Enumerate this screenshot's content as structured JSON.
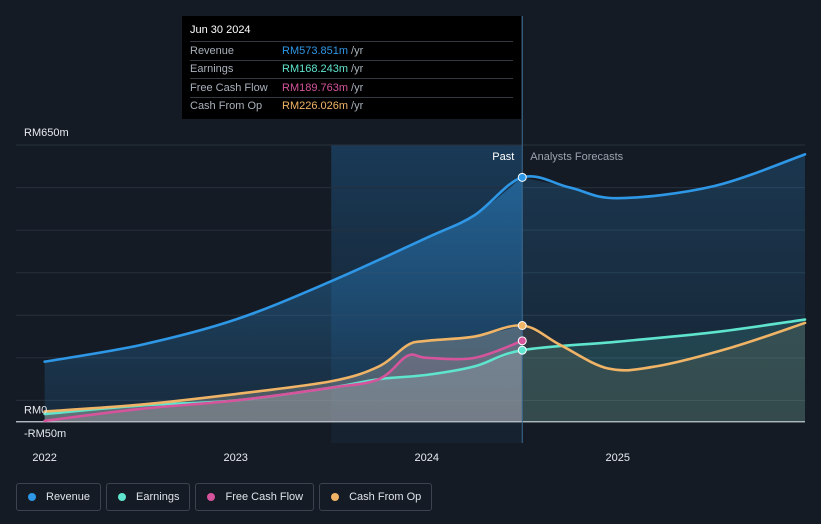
{
  "chart_data": {
    "type": "area",
    "y_axis": {
      "top_label": "RM650m",
      "zero_label": "RM0",
      "bottom_label": "-RM50m",
      "ylim": [
        -50,
        650
      ]
    },
    "x_axis": {
      "ticks": [
        {
          "x": 2022.0,
          "label": "2022"
        },
        {
          "x": 2023.0,
          "label": "2023"
        },
        {
          "x": 2024.0,
          "label": "2024"
        },
        {
          "x": 2025.0,
          "label": "2025"
        }
      ],
      "xlim": [
        2021.85,
        2025.98
      ]
    },
    "divider": {
      "x": 2024.5,
      "past_label": "Past",
      "forecast_label": "Analysts Forecasts"
    },
    "highlight_start": 2023.5,
    "series": [
      {
        "name": "Revenue",
        "color": "#2e97e6",
        "past": [
          [
            2022.0,
            141
          ],
          [
            2022.5,
            180
          ],
          [
            2023.0,
            240
          ],
          [
            2023.5,
            330
          ],
          [
            2024.0,
            432
          ],
          [
            2024.25,
            485
          ],
          [
            2024.5,
            574
          ]
        ],
        "forecast": [
          [
            2024.5,
            574
          ],
          [
            2024.75,
            550
          ],
          [
            2025.0,
            525
          ],
          [
            2025.5,
            553
          ],
          [
            2025.98,
            628
          ]
        ]
      },
      {
        "name": "Earnings",
        "color": "#5fe4cd",
        "past": [
          [
            2022.0,
            18
          ],
          [
            2022.5,
            38
          ],
          [
            2023.0,
            50
          ],
          [
            2023.5,
            80
          ],
          [
            2023.75,
            100
          ],
          [
            2024.0,
            110
          ],
          [
            2024.25,
            130
          ],
          [
            2024.5,
            168
          ]
        ],
        "forecast": [
          [
            2024.5,
            168
          ],
          [
            2025.0,
            188
          ],
          [
            2025.5,
            210
          ],
          [
            2025.98,
            240
          ]
        ]
      },
      {
        "name": "Free Cash Flow",
        "color": "#d5549c",
        "past": [
          [
            2022.0,
            2
          ],
          [
            2022.5,
            30
          ],
          [
            2023.0,
            50
          ],
          [
            2023.5,
            80
          ],
          [
            2023.75,
            100
          ],
          [
            2023.9,
            155
          ],
          [
            2024.0,
            150
          ],
          [
            2024.25,
            150
          ],
          [
            2024.5,
            190
          ]
        ]
      },
      {
        "name": "Cash From Op",
        "color": "#f0b467",
        "past": [
          [
            2022.0,
            24
          ],
          [
            2022.5,
            40
          ],
          [
            2023.0,
            65
          ],
          [
            2023.5,
            95
          ],
          [
            2023.75,
            130
          ],
          [
            2023.9,
            180
          ],
          [
            2024.0,
            190
          ],
          [
            2024.25,
            200
          ],
          [
            2024.5,
            226
          ]
        ],
        "forecast": [
          [
            2024.5,
            226
          ],
          [
            2024.7,
            180
          ],
          [
            2024.95,
            125
          ],
          [
            2025.2,
            130
          ],
          [
            2025.6,
            175
          ],
          [
            2025.98,
            232
          ]
        ]
      }
    ]
  },
  "tooltip": {
    "date": "Jun 30 2024",
    "rows": [
      {
        "label": "Revenue",
        "value": "RM573.851m",
        "unit": "/yr",
        "color": "#2e97e6"
      },
      {
        "label": "Earnings",
        "value": "RM168.243m",
        "unit": "/yr",
        "color": "#5fe4cd"
      },
      {
        "label": "Free Cash Flow",
        "value": "RM189.763m",
        "unit": "/yr",
        "color": "#d5549c"
      },
      {
        "label": "Cash From Op",
        "value": "RM226.026m",
        "unit": "/yr",
        "color": "#f0b467"
      }
    ]
  },
  "legend": [
    {
      "label": "Revenue",
      "color": "#2e97e6"
    },
    {
      "label": "Earnings",
      "color": "#5fe4cd"
    },
    {
      "label": "Free Cash Flow",
      "color": "#d5549c"
    },
    {
      "label": "Cash From Op",
      "color": "#f0b467"
    }
  ]
}
